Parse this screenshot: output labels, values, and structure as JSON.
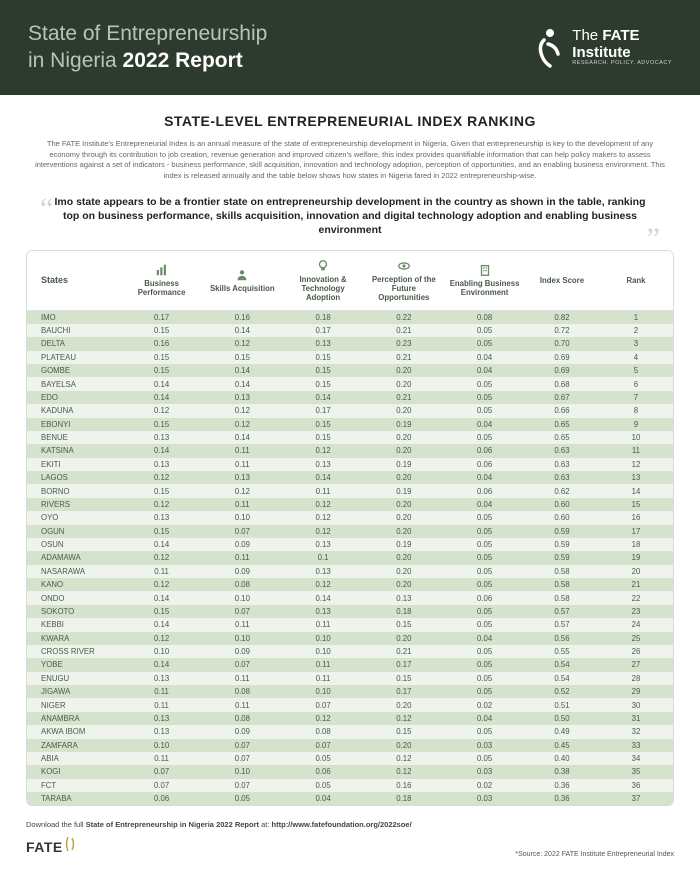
{
  "header": {
    "title_line1": "State of Entrepreneurship",
    "title_line2_a": "in Nigeria ",
    "title_line2_b": "2022 Report",
    "logo_line1": "The ",
    "logo_line2": "FATE",
    "logo_line3": "Institute",
    "logo_tag": "RESEARCH. POLICY. ADVOCACY"
  },
  "section_title": "STATE-LEVEL ENTREPRENEURIAL INDEX RANKING",
  "intro": "The FATE Institute's Entrepreneurial Index is an annual measure of the state of entrepreneurship development in Nigeria. Given that entrepreneurship is key to the development of any economy through its contribution to job creation, revenue generation and improved citizen's welfare, this index provides quantifiable information that can help policy makers to assess interventions against a set of indicators - business performance, skill acquisition, innovation and technology adoption, perception of opportunities, and an enabling business environment. This index is released annually and the table below shows how states in Nigeria fared in 2022 entrepreneurship-wise.",
  "quote": "Imo state appears to be a frontier state on entrepreneurship development in the country as shown in the table, ranking top on business performance, skills acquisition, innovation and digital technology adoption and enabling business environment",
  "table": {
    "row_odd_bg": "#d5e3cd",
    "row_even_bg": "#eef3eb",
    "border_color": "#d8dcd8",
    "text_color": "#4a5a4a",
    "columns": [
      {
        "key": "state",
        "label": "States",
        "icon": null
      },
      {
        "key": "bp",
        "label": "Business Performance",
        "icon": "chart"
      },
      {
        "key": "sa",
        "label": "Skills Acquisition",
        "icon": "skills"
      },
      {
        "key": "ita",
        "label": "Innovation & Technology Adoption",
        "icon": "bulb"
      },
      {
        "key": "pfo",
        "label": "Perception of the Future Opportunities",
        "icon": "eye"
      },
      {
        "key": "ebe",
        "label": "Enabling Business Environment",
        "icon": "building"
      },
      {
        "key": "score",
        "label": "Index Score",
        "icon": null
      },
      {
        "key": "rank",
        "label": "Rank",
        "icon": null
      }
    ],
    "rows": [
      {
        "state": "IMO",
        "bp": "0.17",
        "sa": "0.16",
        "ita": "0.18",
        "pfo": "0.22",
        "ebe": "0.08",
        "score": "0.82",
        "rank": "1"
      },
      {
        "state": "BAUCHI",
        "bp": "0.15",
        "sa": "0.14",
        "ita": "0.17",
        "pfo": "0.21",
        "ebe": "0.05",
        "score": "0.72",
        "rank": "2"
      },
      {
        "state": "DELTA",
        "bp": "0.16",
        "sa": "0.12",
        "ita": "0.13",
        "pfo": "0.23",
        "ebe": "0.05",
        "score": "0.70",
        "rank": "3"
      },
      {
        "state": "PLATEAU",
        "bp": "0.15",
        "sa": "0.15",
        "ita": "0.15",
        "pfo": "0.21",
        "ebe": "0.04",
        "score": "0.69",
        "rank": "4"
      },
      {
        "state": "GOMBE",
        "bp": "0.15",
        "sa": "0.14",
        "ita": "0.15",
        "pfo": "0.20",
        "ebe": "0.04",
        "score": "0.69",
        "rank": "5"
      },
      {
        "state": "BAYELSA",
        "bp": "0.14",
        "sa": "0.14",
        "ita": "0.15",
        "pfo": "0.20",
        "ebe": "0.05",
        "score": "0.68",
        "rank": "6"
      },
      {
        "state": "EDO",
        "bp": "0.14",
        "sa": "0.13",
        "ita": "0.14",
        "pfo": "0.21",
        "ebe": "0.05",
        "score": "0.67",
        "rank": "7"
      },
      {
        "state": "KADUNA",
        "bp": "0.12",
        "sa": "0.12",
        "ita": "0.17",
        "pfo": "0.20",
        "ebe": "0.05",
        "score": "0.66",
        "rank": "8"
      },
      {
        "state": "EBONYI",
        "bp": "0.15",
        "sa": "0.12",
        "ita": "0.15",
        "pfo": "0.19",
        "ebe": "0.04",
        "score": "0.65",
        "rank": "9"
      },
      {
        "state": "BENUE",
        "bp": "0.13",
        "sa": "0.14",
        "ita": "0.15",
        "pfo": "0.20",
        "ebe": "0.05",
        "score": "0.65",
        "rank": "10"
      },
      {
        "state": "KATSINA",
        "bp": "0.14",
        "sa": "0.11",
        "ita": "0.12",
        "pfo": "0.20",
        "ebe": "0.06",
        "score": "0.63",
        "rank": "11"
      },
      {
        "state": "EKITI",
        "bp": "0.13",
        "sa": "0.11",
        "ita": "0.13",
        "pfo": "0.19",
        "ebe": "0.06",
        "score": "0.63",
        "rank": "12"
      },
      {
        "state": "LAGOS",
        "bp": "0.12",
        "sa": "0.13",
        "ita": "0.14",
        "pfo": "0.20",
        "ebe": "0.04",
        "score": "0.63",
        "rank": "13"
      },
      {
        "state": "BORNO",
        "bp": "0.15",
        "sa": "0.12",
        "ita": "0.11",
        "pfo": "0.19",
        "ebe": "0.06",
        "score": "0.62",
        "rank": "14"
      },
      {
        "state": "RIVERS",
        "bp": "0.12",
        "sa": "0.11",
        "ita": "0.12",
        "pfo": "0.20",
        "ebe": "0.04",
        "score": "0.60",
        "rank": "15"
      },
      {
        "state": "OYO",
        "bp": "0.13",
        "sa": "0.10",
        "ita": "0.12",
        "pfo": "0.20",
        "ebe": "0.05",
        "score": "0.60",
        "rank": "16"
      },
      {
        "state": "OGUN",
        "bp": "0.15",
        "sa": "0.07",
        "ita": "0.12",
        "pfo": "0.20",
        "ebe": "0.05",
        "score": "0.59",
        "rank": "17"
      },
      {
        "state": "OSUN",
        "bp": "0.14",
        "sa": "0.09",
        "ita": "0.13",
        "pfo": "0.19",
        "ebe": "0.05",
        "score": "0.59",
        "rank": "18"
      },
      {
        "state": "ADAMAWA",
        "bp": "0.12",
        "sa": "0.11",
        "ita": "0.1",
        "pfo": "0.20",
        "ebe": "0.05",
        "score": "0.59",
        "rank": "19"
      },
      {
        "state": "NASARAWA",
        "bp": "0.11",
        "sa": "0.09",
        "ita": "0.13",
        "pfo": "0.20",
        "ebe": "0.05",
        "score": "0.58",
        "rank": "20"
      },
      {
        "state": "KANO",
        "bp": "0.12",
        "sa": "0.08",
        "ita": "0.12",
        "pfo": "0.20",
        "ebe": "0.05",
        "score": "0.58",
        "rank": "21"
      },
      {
        "state": "ONDO",
        "bp": "0.14",
        "sa": "0.10",
        "ita": "0.14",
        "pfo": "0.13",
        "ebe": "0.06",
        "score": "0.58",
        "rank": "22"
      },
      {
        "state": "SOKOTO",
        "bp": "0.15",
        "sa": "0.07",
        "ita": "0.13",
        "pfo": "0.18",
        "ebe": "0.05",
        "score": "0.57",
        "rank": "23"
      },
      {
        "state": "KEBBI",
        "bp": "0.14",
        "sa": "0.11",
        "ita": "0.11",
        "pfo": "0.15",
        "ebe": "0.05",
        "score": "0.57",
        "rank": "24"
      },
      {
        "state": "KWARA",
        "bp": "0.12",
        "sa": "0.10",
        "ita": "0.10",
        "pfo": "0.20",
        "ebe": "0.04",
        "score": "0.56",
        "rank": "25"
      },
      {
        "state": "CROSS RIVER",
        "bp": "0.10",
        "sa": "0.09",
        "ita": "0.10",
        "pfo": "0.21",
        "ebe": "0.05",
        "score": "0.55",
        "rank": "26"
      },
      {
        "state": "YOBE",
        "bp": "0.14",
        "sa": "0.07",
        "ita": "0.11",
        "pfo": "0.17",
        "ebe": "0.05",
        "score": "0.54",
        "rank": "27"
      },
      {
        "state": "ENUGU",
        "bp": "0.13",
        "sa": "0.11",
        "ita": "0.11",
        "pfo": "0.15",
        "ebe": "0.05",
        "score": "0.54",
        "rank": "28"
      },
      {
        "state": "JIGAWA",
        "bp": "0.11",
        "sa": "0.08",
        "ita": "0.10",
        "pfo": "0.17",
        "ebe": "0.05",
        "score": "0.52",
        "rank": "29"
      },
      {
        "state": "NIGER",
        "bp": "0.11",
        "sa": "0.11",
        "ita": "0.07",
        "pfo": "0.20",
        "ebe": "0.02",
        "score": "0.51",
        "rank": "30"
      },
      {
        "state": "ANAMBRA",
        "bp": "0.13",
        "sa": "0.08",
        "ita": "0.12",
        "pfo": "0.12",
        "ebe": "0.04",
        "score": "0.50",
        "rank": "31"
      },
      {
        "state": "AKWA IBOM",
        "bp": "0.13",
        "sa": "0.09",
        "ita": "0.08",
        "pfo": "0.15",
        "ebe": "0.05",
        "score": "0.49",
        "rank": "32"
      },
      {
        "state": "ZAMFARA",
        "bp": "0.10",
        "sa": "0.07",
        "ita": "0.07",
        "pfo": "0.20",
        "ebe": "0.03",
        "score": "0.45",
        "rank": "33"
      },
      {
        "state": "ABIA",
        "bp": "0.11",
        "sa": "0.07",
        "ita": "0.05",
        "pfo": "0.12",
        "ebe": "0.05",
        "score": "0.40",
        "rank": "34"
      },
      {
        "state": "KOGI",
        "bp": "0.07",
        "sa": "0.10",
        "ita": "0.06",
        "pfo": "0.12",
        "ebe": "0.03",
        "score": "0.38",
        "rank": "35"
      },
      {
        "state": "FCT",
        "bp": "0.07",
        "sa": "0.07",
        "ita": "0.05",
        "pfo": "0.16",
        "ebe": "0.02",
        "score": "0.36",
        "rank": "36"
      },
      {
        "state": "TARABA",
        "bp": "0.06",
        "sa": "0.05",
        "ita": "0.04",
        "pfo": "0.18",
        "ebe": "0.03",
        "score": "0.36",
        "rank": "37"
      }
    ]
  },
  "footer": {
    "download_prefix": "Download the full ",
    "download_bold": "State of Entrepreneurship in Nigeria 2022 Report",
    "download_at": " at: ",
    "download_url": "http://www.fatefoundation.org/2022soe/",
    "logo_text": "FATE",
    "source": "*Source: 2022 FATE Institute Entrepreneurial Index"
  }
}
